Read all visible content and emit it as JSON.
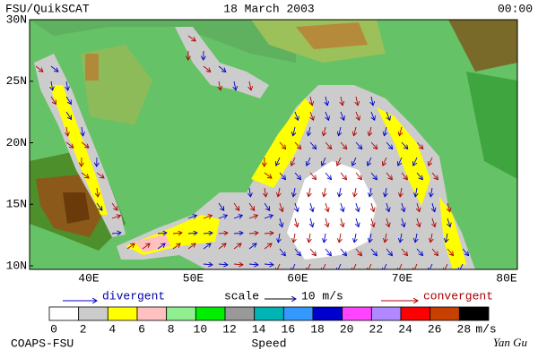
{
  "header": {
    "left": "FSU/QuikSCAT",
    "center": "18 March 2003",
    "right": "00:00"
  },
  "map": {
    "lat_labels": [
      "30N",
      "25N",
      "20N",
      "15N",
      "10N"
    ],
    "lon_labels": [
      "40E",
      "50E",
      "60E",
      "70E",
      "80E"
    ]
  },
  "legend": {
    "divergent": "divergent",
    "scale": "scale",
    "scale_value": "10 m/s",
    "convergent": "convergent"
  },
  "colorbar": {
    "labels": [
      "0",
      "2",
      "4",
      "6",
      "8",
      "10",
      "12",
      "14",
      "16",
      "18",
      "20",
      "22",
      "24",
      "26",
      "28"
    ],
    "unit": "m/s",
    "title": "Speed",
    "colors": [
      "#ffffff",
      "#cccccc",
      "#ffff00",
      "#ffc0c0",
      "#90f090",
      "#00ee00",
      "#999999",
      "#00b4b4",
      "#3399ff",
      "#0000cc",
      "#ff44ff",
      "#b088ff",
      "#ff0000",
      "#c84000",
      "#000000"
    ]
  },
  "footer": {
    "left": "COAPS-FSU",
    "right": "Yan Gu"
  }
}
